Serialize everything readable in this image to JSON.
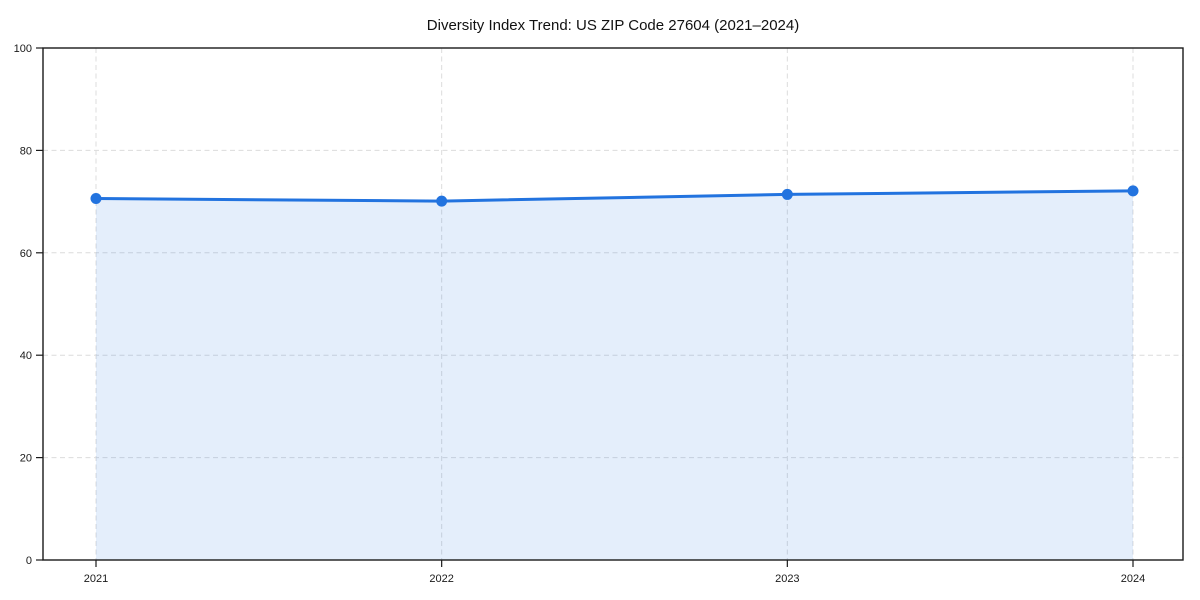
{
  "chart_data": {
    "type": "area",
    "title": "Diversity Index Trend: US ZIP Code 27604 (2021–2024)",
    "categories": [
      "2021",
      "2022",
      "2023",
      "2024"
    ],
    "series": [
      {
        "name": "Diversity Index",
        "values": [
          70.6,
          70.1,
          71.4,
          72.1
        ]
      }
    ],
    "xlabel": "",
    "ylabel": "",
    "ylim": [
      0,
      100
    ],
    "yticks": [
      0,
      20,
      40,
      60,
      80,
      100
    ],
    "grid": true,
    "grid_style": "dashed",
    "legend": false,
    "marker": "circle",
    "colors": {
      "line": "#2273df",
      "marker": "#2273df",
      "fill": "#2273df",
      "fill_opacity": 0.12,
      "grid": "#dcdcdc",
      "spine": "#1a1a1a",
      "text": "#1a1a1a",
      "background": "#ffffff"
    }
  }
}
